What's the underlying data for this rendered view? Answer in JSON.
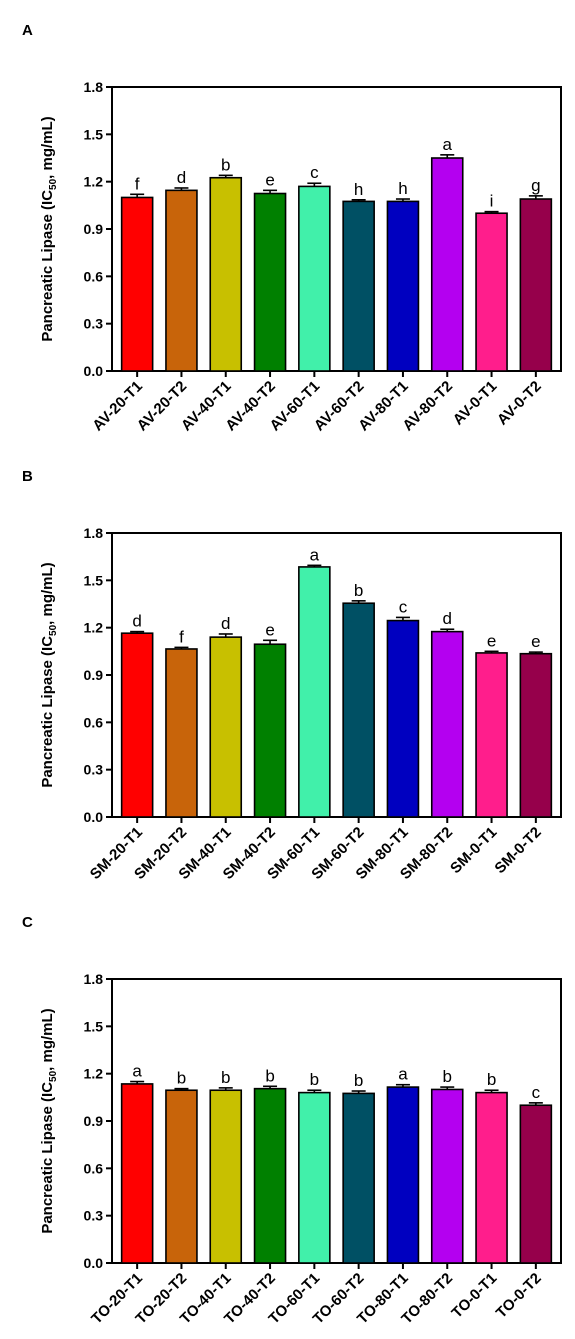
{
  "chart_data": [
    {
      "panel_label": "A",
      "type": "bar",
      "ylabel_main": "Pancreatic Lipase (IC",
      "ylabel_sub": "50",
      "ylabel_tail": ", mg/mL)",
      "ylim": [
        0,
        1.8
      ],
      "yticks": [
        "0.0",
        "0.3",
        "0.6",
        "0.9",
        "1.2",
        "1.5",
        "1.8"
      ],
      "categories": [
        "AV-20-T1",
        "AV-20-T2",
        "AV-40-T1",
        "AV-40-T2",
        "AV-60-T1",
        "AV-60-T2",
        "AV-80-T1",
        "AV-80-T2",
        "AV-0-T1",
        "AV-0-T2"
      ],
      "values": [
        1.1,
        1.145,
        1.225,
        1.125,
        1.17,
        1.075,
        1.075,
        1.35,
        1.0,
        1.09
      ],
      "errors": [
        0.02,
        0.015,
        0.015,
        0.02,
        0.02,
        0.01,
        0.015,
        0.02,
        0.01,
        0.02
      ],
      "letters": [
        "f",
        "d",
        "b",
        "e",
        "c",
        "h",
        "h",
        "a",
        "i",
        "g"
      ],
      "colors": [
        "#ff0000",
        "#c8640a",
        "#c8c000",
        "#008000",
        "#41f0aa",
        "#005064",
        "#0000c0",
        "#b400f0",
        "#ff1e8c",
        "#96004b"
      ],
      "grid": false
    },
    {
      "panel_label": "B",
      "type": "bar",
      "ylabel_main": "Pancreatic Lipase (IC",
      "ylabel_sub": "50",
      "ylabel_tail": ", mg/mL)",
      "ylim": [
        0,
        1.8
      ],
      "yticks": [
        "0.0",
        "0.3",
        "0.6",
        "0.9",
        "1.2",
        "1.5",
        "1.8"
      ],
      "categories": [
        "SM-20-T1",
        "SM-20-T2",
        "SM-40-T1",
        "SM-40-T2",
        "SM-60-T1",
        "SM-60-T2",
        "SM-80-T1",
        "SM-80-T2",
        "SM-0-T1",
        "SM-0-T2"
      ],
      "values": [
        1.165,
        1.065,
        1.14,
        1.095,
        1.585,
        1.355,
        1.245,
        1.175,
        1.04,
        1.035
      ],
      "errors": [
        0.01,
        0.01,
        0.02,
        0.025,
        0.01,
        0.015,
        0.02,
        0.015,
        0.01,
        0.01
      ],
      "letters": [
        "d",
        "f",
        "d",
        "e",
        "a",
        "b",
        "c",
        "d",
        "e",
        "e"
      ],
      "colors": [
        "#ff0000",
        "#c8640a",
        "#c8c000",
        "#008000",
        "#41f0aa",
        "#005064",
        "#0000c0",
        "#b400f0",
        "#ff1e8c",
        "#96004b"
      ],
      "grid": false
    },
    {
      "panel_label": "C",
      "type": "bar",
      "ylabel_main": "Pancreatic Lipase (IC",
      "ylabel_sub": "50",
      "ylabel_tail": ", mg/mL)",
      "ylim": [
        0,
        1.8
      ],
      "yticks": [
        "0.0",
        "0.3",
        "0.6",
        "0.9",
        "1.2",
        "1.5",
        "1.8"
      ],
      "categories": [
        "TO-20-T1",
        "TO-20-T2",
        "TO-40-T1",
        "TO-40-T2",
        "TO-60-T1",
        "TO-60-T2",
        "TO-80-T1",
        "TO-80-T2",
        "TO-0-T1",
        "TO-0-T2"
      ],
      "values": [
        1.135,
        1.095,
        1.095,
        1.105,
        1.08,
        1.075,
        1.115,
        1.1,
        1.08,
        1.0
      ],
      "errors": [
        0.015,
        0.01,
        0.015,
        0.015,
        0.015,
        0.015,
        0.015,
        0.015,
        0.015,
        0.015
      ],
      "letters": [
        "a",
        "b",
        "b",
        "b",
        "b",
        "b",
        "a",
        "b",
        "b",
        "c"
      ],
      "colors": [
        "#ff0000",
        "#c8640a",
        "#c8c000",
        "#008000",
        "#41f0aa",
        "#005064",
        "#0000c0",
        "#b400f0",
        "#ff1e8c",
        "#96004b"
      ],
      "grid": false
    }
  ]
}
